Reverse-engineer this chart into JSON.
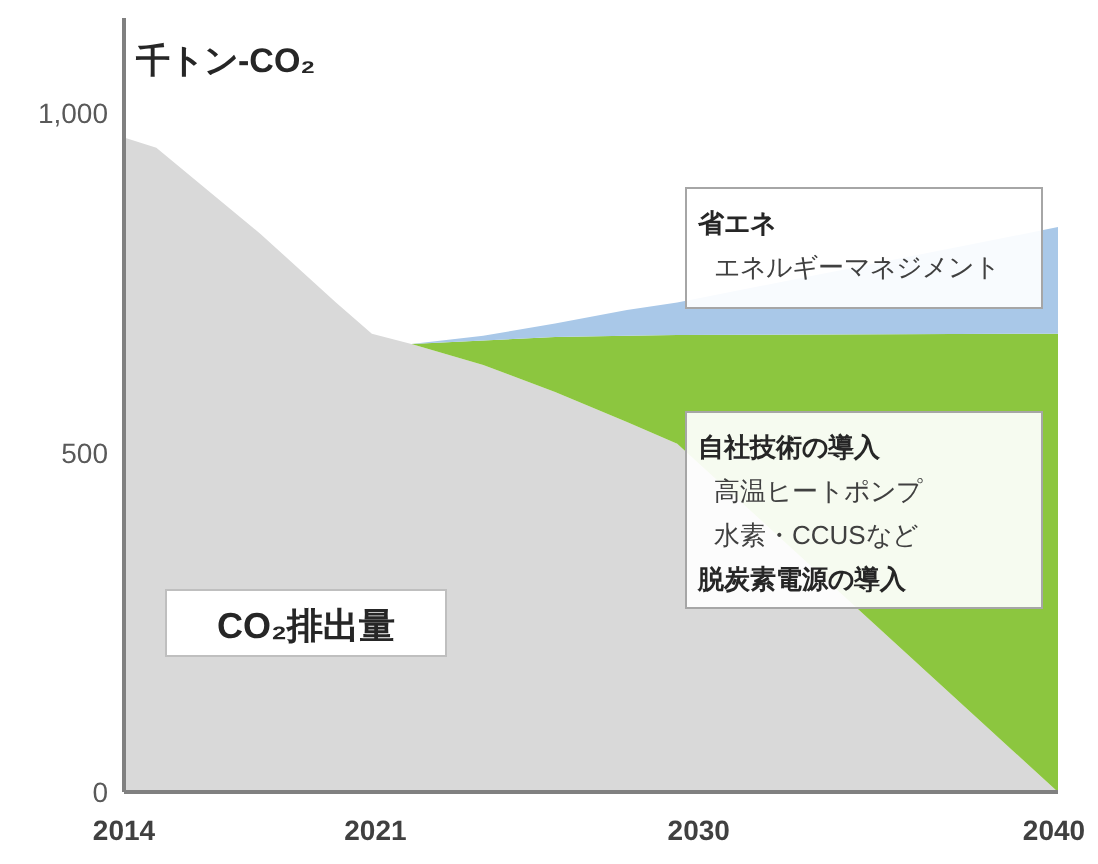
{
  "chart_data": {
    "type": "area",
    "stacked": true,
    "ylabel": "千トン-CO₂",
    "x": [
      2014,
      2014.9,
      2017.8,
      2019.9,
      2020.9,
      2022,
      2024,
      2026,
      2028,
      2029.4,
      2040
    ],
    "series": [
      {
        "name": "CO₂排出量",
        "color": "#d9d9d9",
        "values": [
          964,
          949,
          822,
          721,
          675,
          660,
          629,
          589,
          545,
          513,
          0
        ]
      },
      {
        "color": "#8cc63f",
        "values": [
          null,
          null,
          null,
          null,
          null,
          0,
          36,
          81,
          127,
          160,
          675
        ]
      },
      {
        "color": "#a9c8e8",
        "values": [
          null,
          null,
          null,
          null,
          null,
          0,
          7,
          20,
          38,
          48,
          157
        ]
      }
    ],
    "xlim": [
      2014,
      2040
    ],
    "ylim": [
      0,
      1140
    ],
    "xticks": [
      2014,
      2021,
      2030,
      2040
    ],
    "yticks": [
      0,
      500,
      {
        "value": 1000,
        "label": "1,000"
      }
    ],
    "annotations": [
      "省エネ",
      "エネルギーマネジメント",
      "自社技術の導入",
      "高温ヒートポンプ",
      "水素・CCUSなど",
      "脱炭素電源の導入"
    ]
  }
}
